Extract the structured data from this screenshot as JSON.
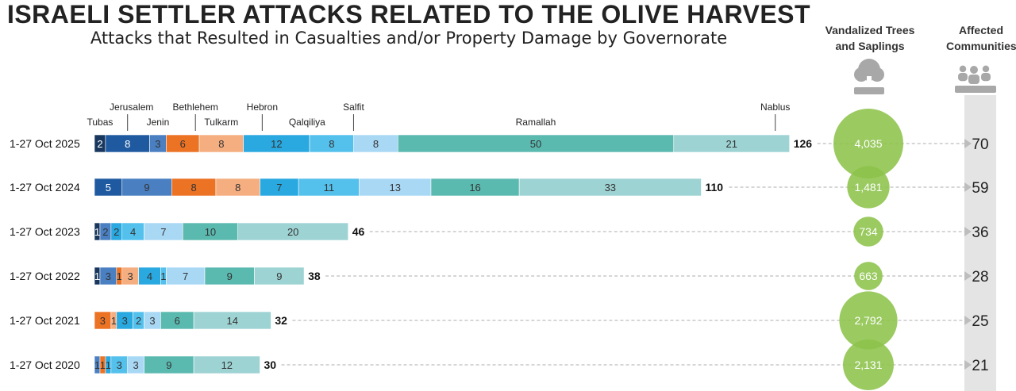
{
  "header": {
    "title": "ISRAELI SETTLER ATTACKS RELATED TO THE OLIVE HARVEST",
    "subtitle": "Attacks that Resulted in Casualties and/or Property Damage by Governorate"
  },
  "columns": {
    "trees_label": "Vandalized Trees and Saplings",
    "communities_label": "Affected Communities",
    "trees_icon": "tree-icon",
    "communities_icon": "people-icon"
  },
  "chart_data": {
    "type": "bar",
    "orientation": "horizontal",
    "stacked": true,
    "categories": [
      "1-27 Oct 2025",
      "1-27 Oct 2024",
      "1-27 Oct 2023",
      "1-27 Oct 2022",
      "1-27 Oct 2021",
      "1-27 Oct 2020"
    ],
    "series": [
      {
        "name": "Tubas",
        "color": "#17375e",
        "values": [
          2,
          0,
          1,
          1,
          0,
          0
        ]
      },
      {
        "name": "Jerusalem",
        "color": "#1f5aa0",
        "values": [
          8,
          5,
          0,
          0,
          0,
          0
        ]
      },
      {
        "name": "Jenin",
        "color": "#4a7fc1",
        "values": [
          3,
          9,
          2,
          3,
          0,
          1
        ]
      },
      {
        "name": "Bethlehem",
        "color": "#ec7224",
        "values": [
          6,
          8,
          0,
          1,
          3,
          1
        ]
      },
      {
        "name": "Tulkarm",
        "color": "#f5ae80",
        "values": [
          8,
          8,
          0,
          3,
          1,
          0
        ]
      },
      {
        "name": "Hebron",
        "color": "#2aa9e0",
        "values": [
          12,
          7,
          2,
          4,
          3,
          1
        ]
      },
      {
        "name": "Qalqiliya",
        "color": "#54c0ec",
        "values": [
          8,
          11,
          4,
          1,
          2,
          3
        ]
      },
      {
        "name": "Salfit",
        "color": "#a9d8f5",
        "values": [
          8,
          13,
          7,
          7,
          3,
          3
        ]
      },
      {
        "name": "Ramallah",
        "color": "#5bbab0",
        "values": [
          50,
          16,
          10,
          9,
          6,
          9
        ]
      },
      {
        "name": "Nablus",
        "color": "#9ed3d4",
        "values": [
          21,
          33,
          20,
          9,
          14,
          12
        ]
      }
    ],
    "totals": [
      126,
      110,
      46,
      38,
      32,
      30
    ],
    "vandalized_trees": [
      "4,035",
      "1,481",
      "734",
      "663",
      "2,792",
      "2,131"
    ],
    "vandalized_trees_values": [
      4035,
      1481,
      734,
      663,
      2792,
      2131
    ],
    "affected_communities": [
      70,
      59,
      36,
      28,
      25,
      21
    ],
    "bubble_color": "#8cc34a"
  }
}
